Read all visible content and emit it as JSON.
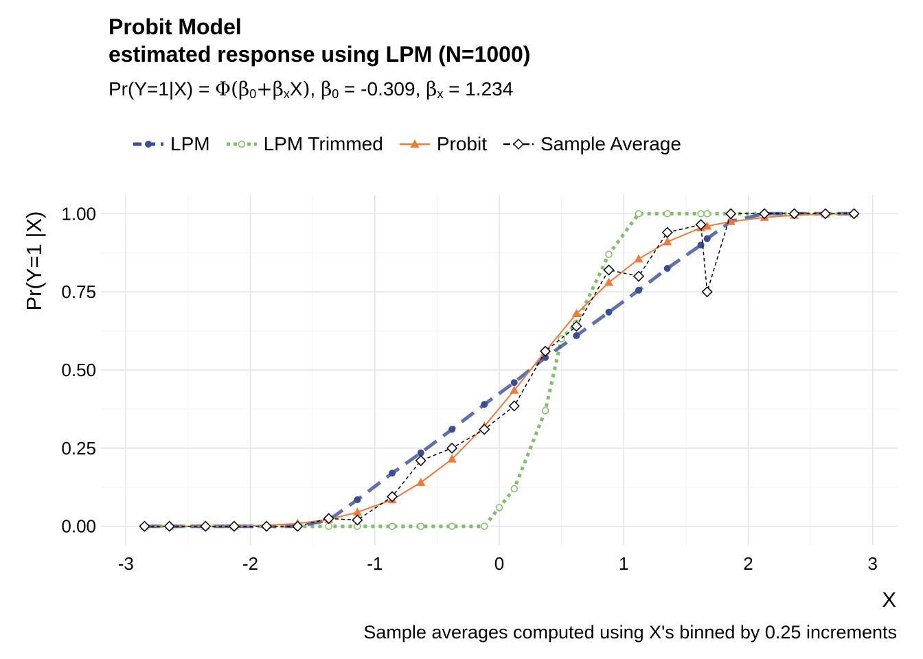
{
  "chart_data": {
    "type": "line",
    "title": "Probit Model",
    "subtitle_line": "estimated response using LPM (N=1000)",
    "equation": {
      "lhs": "Pr(Y=1|X) = ",
      "phi": "Φ",
      "open": "(",
      "beta": "β",
      "sub0": "0",
      "plus": "+",
      "subx": "x",
      "x": "X",
      "close": ")",
      "b0_label_suffix": " = -0.309, ",
      "bx_label_suffix": " = 1.234"
    },
    "xlabel": "X",
    "ylabel": "Pr(Y=1 |X)",
    "caption": "Sample averages computed using X's binned by 0.25 increments",
    "xlim": [
      -3.2,
      3.2
    ],
    "ylim": [
      -0.06,
      1.06
    ],
    "x_ticks": [
      -3,
      -2,
      -1,
      0,
      1,
      2,
      3
    ],
    "x_tick_labels": [
      "-3",
      "-2",
      "-1",
      "0",
      "1",
      "2",
      "3"
    ],
    "y_ticks": [
      0,
      0.25,
      0.5,
      0.75,
      1
    ],
    "y_tick_labels": [
      "0.00",
      "0.25",
      "0.50",
      "0.75",
      "1.00"
    ],
    "grid": true,
    "legend_position": "top",
    "x": [
      -2.85,
      -2.65,
      -2.36,
      -2.13,
      -1.87,
      -1.62,
      -1.37,
      -1.14,
      -0.86,
      -0.63,
      -0.38,
      -0.12,
      0.12,
      0.37,
      0.62,
      0.88,
      1.12,
      1.35,
      1.62,
      1.67,
      1.86,
      2.13,
      2.37,
      2.62,
      2.85
    ],
    "series": [
      {
        "name": "LPM",
        "color": "#3A4E96",
        "style": "dashed",
        "values": [
          0,
          0,
          0,
          0,
          0,
          0,
          0.02,
          0.085,
          0.17,
          0.235,
          0.31,
          0.39,
          0.46,
          0.54,
          0.61,
          0.685,
          0.755,
          0.825,
          0.9,
          0.92,
          0.975,
          1,
          1,
          1,
          1
        ]
      },
      {
        "name": "LPM Trimmed",
        "color": "#7FBF6A",
        "style": "dotted",
        "x": [
          -2.85,
          -2.65,
          -2.36,
          -2.13,
          -1.87,
          -1.62,
          -1.37,
          -1.14,
          -0.86,
          -0.63,
          -0.38,
          -0.12,
          0.0,
          0.12,
          0.37,
          0.5,
          0.62,
          0.88,
          1.12,
          1.35,
          1.62,
          1.67,
          1.86,
          2.13,
          2.37,
          2.62,
          2.85
        ],
        "values": [
          0,
          0,
          0,
          0,
          0,
          0,
          0,
          0,
          0,
          0,
          0,
          0,
          0.06,
          0.12,
          0.37,
          0.6,
          0.65,
          0.87,
          1,
          1,
          1,
          1,
          1,
          1,
          1,
          1,
          1
        ]
      },
      {
        "name": "Probit",
        "color": "#F07A3A",
        "style": "solid",
        "values": [
          0,
          0,
          0,
          0,
          0.003,
          0.009,
          0.022,
          0.045,
          0.085,
          0.14,
          0.215,
          0.32,
          0.435,
          0.56,
          0.68,
          0.78,
          0.855,
          0.91,
          0.955,
          0.96,
          0.975,
          0.988,
          0.995,
          0.999,
          1
        ]
      },
      {
        "name": "Sample Average",
        "color": "#000000",
        "style": "dashed-thin",
        "values": [
          0,
          0,
          0,
          0,
          0,
          0,
          0.025,
          0.02,
          0.095,
          0.21,
          0.25,
          0.31,
          0.385,
          0.56,
          0.64,
          0.82,
          0.8,
          0.94,
          0.965,
          0.75,
          1,
          1,
          1,
          1,
          1
        ]
      }
    ]
  }
}
